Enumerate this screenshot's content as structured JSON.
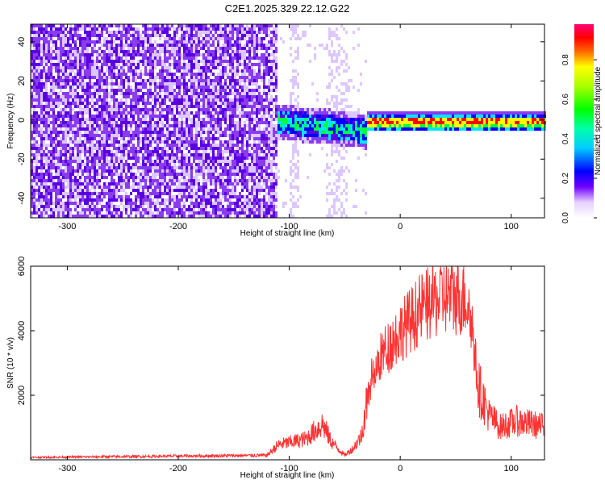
{
  "title": "C2E1.2025.329.22.12.G22",
  "chart_data": [
    {
      "type": "heatmap",
      "xlabel": "Height of straight line (km)",
      "ylabel": "Frequency (Hz)",
      "xlim": [
        -333,
        130
      ],
      "ylim": [
        -50,
        49
      ],
      "xticks": [
        -300,
        -200,
        -100,
        0,
        100
      ],
      "yticks": [
        -40,
        -20,
        0,
        20,
        40
      ],
      "colorbar": {
        "label": "Normalized spectral amplitude",
        "range": [
          0,
          0.98
        ],
        "ticks": [
          0.0,
          0.2,
          0.4,
          0.6,
          0.8
        ],
        "tick_labels": [
          "0.0",
          "0.2",
          "0.4",
          "0.6",
          "0.8"
        ]
      },
      "regions": [
        {
          "name": "noise",
          "x_range": [
            -333,
            -112
          ],
          "freq_range": [
            -50,
            49
          ],
          "amplitude_range": [
            0.05,
            0.3
          ]
        },
        {
          "name": "signal-spread",
          "x_range": [
            -112,
            -30
          ],
          "freq_center": 0,
          "freq_halfwidth": 8,
          "amplitude_range": [
            0.3,
            0.55
          ]
        },
        {
          "name": "tone",
          "x_range": [
            -30,
            130
          ],
          "freq_center": 0,
          "freq_halfwidth": 2,
          "amplitude_range": [
            0.7,
            0.98
          ]
        }
      ],
      "colors": [
        "#ffffff",
        "#dcc8ff",
        "#8a3cf0",
        "#5a00e0",
        "#0000ff",
        "#00e5ff",
        "#00ff40",
        "#ffff00",
        "#ff0000",
        "#ff0080"
      ]
    },
    {
      "type": "line",
      "xlabel": "Height of straight line (km)",
      "ylabel": "SNR (10 * v/v)",
      "xlim": [
        -333,
        130
      ],
      "ylim": [
        0,
        6000
      ],
      "xticks": [
        -300,
        -200,
        -100,
        0,
        100
      ],
      "yticks": [
        2000,
        4000,
        6000
      ],
      "series_color": "#ff3333",
      "envelope": [
        {
          "x": -333,
          "y": 80
        },
        {
          "x": -120,
          "y": 150
        },
        {
          "x": -110,
          "y": 500
        },
        {
          "x": -85,
          "y": 700
        },
        {
          "x": -70,
          "y": 1200
        },
        {
          "x": -62,
          "y": 600
        },
        {
          "x": -50,
          "y": 150
        },
        {
          "x": -42,
          "y": 400
        },
        {
          "x": -35,
          "y": 800
        },
        {
          "x": -30,
          "y": 2000
        },
        {
          "x": -25,
          "y": 3000
        },
        {
          "x": -15,
          "y": 3600
        },
        {
          "x": 0,
          "y": 4300
        },
        {
          "x": 20,
          "y": 5100
        },
        {
          "x": 40,
          "y": 5500
        },
        {
          "x": 60,
          "y": 5400
        },
        {
          "x": 65,
          "y": 4400
        },
        {
          "x": 70,
          "y": 2500
        },
        {
          "x": 80,
          "y": 1500
        },
        {
          "x": 90,
          "y": 1100
        },
        {
          "x": 105,
          "y": 1300
        },
        {
          "x": 130,
          "y": 1100
        }
      ]
    }
  ]
}
